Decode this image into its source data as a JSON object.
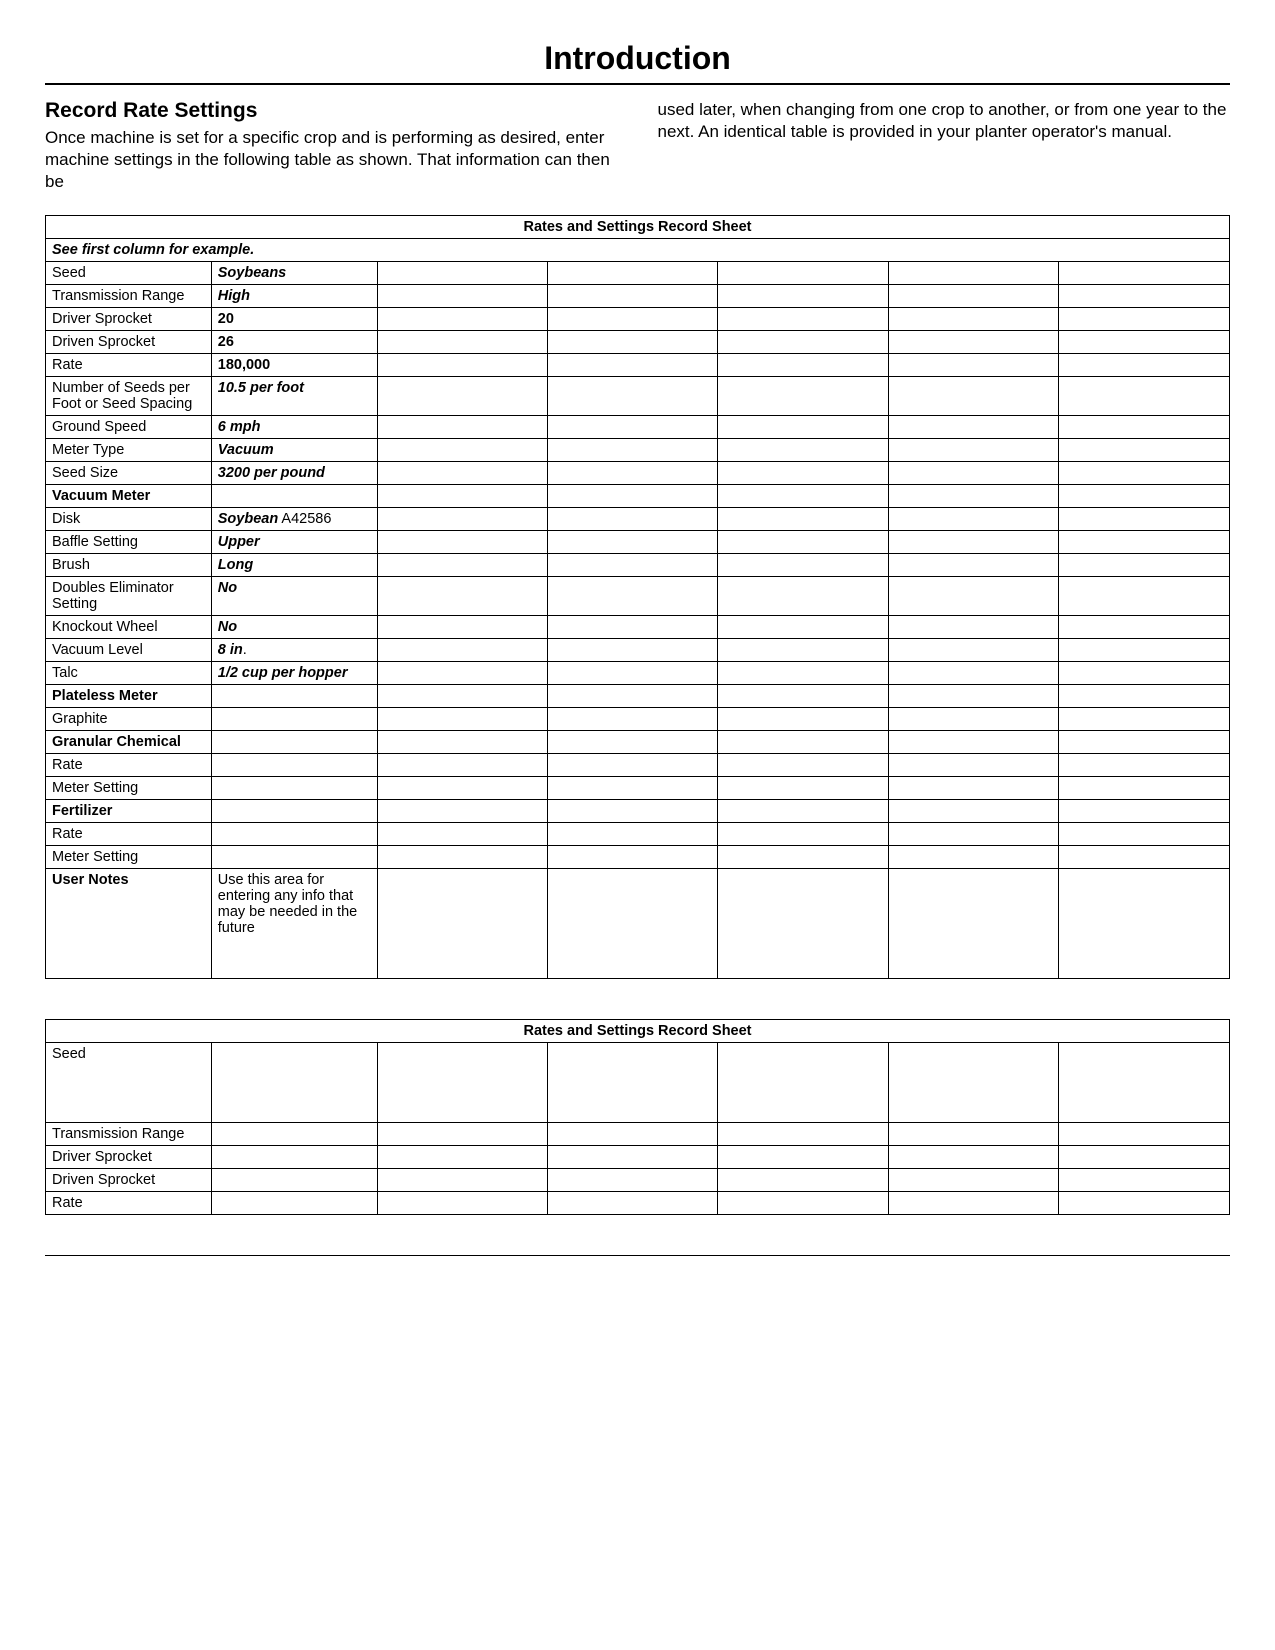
{
  "page_title": "Introduction",
  "section_title": "Record Rate Settings",
  "intro_left": "Once machine is set for a specific crop and is performing as desired, enter machine settings in the following table as shown. That information can then be",
  "intro_right": "used later, when changing from one crop to another, or from one year to the next. An identical table is provided in your planter operator's manual.",
  "table1": {
    "title": "Rates and Settings Record Sheet",
    "subheader": "See first column for example.",
    "rows": [
      {
        "label": "Seed",
        "example": "Soybeans",
        "label_bold": false,
        "ex_bold": true,
        "ex_italic": true
      },
      {
        "label": "Transmission Range",
        "example": "High",
        "label_bold": false,
        "ex_bold": true,
        "ex_italic": true
      },
      {
        "label": "Driver Sprocket",
        "example": "20",
        "label_bold": false,
        "ex_bold": true,
        "ex_italic": false
      },
      {
        "label": "Driven Sprocket",
        "example": "26",
        "label_bold": false,
        "ex_bold": true,
        "ex_italic": false
      },
      {
        "label": "Rate",
        "example": "180,000",
        "label_bold": false,
        "ex_bold": true,
        "ex_italic": false
      },
      {
        "label": "Number of Seeds per Foot or Seed Spacing",
        "example": "10.5 per foot",
        "label_bold": false,
        "ex_bold": true,
        "ex_italic": true
      },
      {
        "label": "Ground Speed",
        "example": "6 mph",
        "label_bold": false,
        "ex_bold": true,
        "ex_italic": true
      },
      {
        "label": "Meter Type",
        "example": "Vacuum",
        "label_bold": false,
        "ex_bold": true,
        "ex_italic": true
      },
      {
        "label": "Seed Size",
        "example": "3200 per pound",
        "label_bold": false,
        "ex_bold": true,
        "ex_italic": true
      },
      {
        "label": "Vacuum Meter",
        "example": "",
        "label_bold": true,
        "ex_bold": false,
        "ex_italic": false,
        "section": true
      },
      {
        "label": "Disk",
        "example_html": "<span class='bold ital'>Soybean</span> A42586"
      },
      {
        "label": "Baffle Setting",
        "example": "Upper",
        "label_bold": false,
        "ex_bold": true,
        "ex_italic": true
      },
      {
        "label": "Brush",
        "example": "Long",
        "label_bold": false,
        "ex_bold": true,
        "ex_italic": true
      },
      {
        "label": "Doubles Eliminator Setting",
        "example": "No",
        "label_bold": false,
        "ex_bold": true,
        "ex_italic": true
      },
      {
        "label": "Knockout Wheel",
        "example": "No",
        "label_bold": false,
        "ex_bold": true,
        "ex_italic": true
      },
      {
        "label": "Vacuum Level",
        "example_html": "<span class='bold ital'>8 in</span>."
      },
      {
        "label": "Talc",
        "example": "1/2 cup per hopper",
        "label_bold": false,
        "ex_bold": true,
        "ex_italic": true
      },
      {
        "label": "Plateless Meter",
        "example": "",
        "label_bold": true,
        "section": true
      },
      {
        "label": "Graphite",
        "example": ""
      },
      {
        "label": "Granular Chemical",
        "example": "",
        "label_bold": true,
        "section": true
      },
      {
        "label": "Rate",
        "example": ""
      },
      {
        "label": "Meter Setting",
        "example": ""
      },
      {
        "label": "Fertilizer",
        "example": "",
        "label_bold": true,
        "section": true
      },
      {
        "label": "Rate",
        "example": ""
      },
      {
        "label": "Meter Setting",
        "example": ""
      },
      {
        "label": "User Notes",
        "example": "Use this area for entering any info that may be needed in the future",
        "label_bold": true,
        "notes": true
      }
    ]
  },
  "table2": {
    "title": "Rates and Settings Record Sheet",
    "rows": [
      {
        "label": "Seed",
        "tall": true
      },
      {
        "label": "Transmission Range"
      },
      {
        "label": "Driver Sprocket"
      },
      {
        "label": "Driven Sprocket"
      },
      {
        "label": "Rate"
      }
    ]
  }
}
